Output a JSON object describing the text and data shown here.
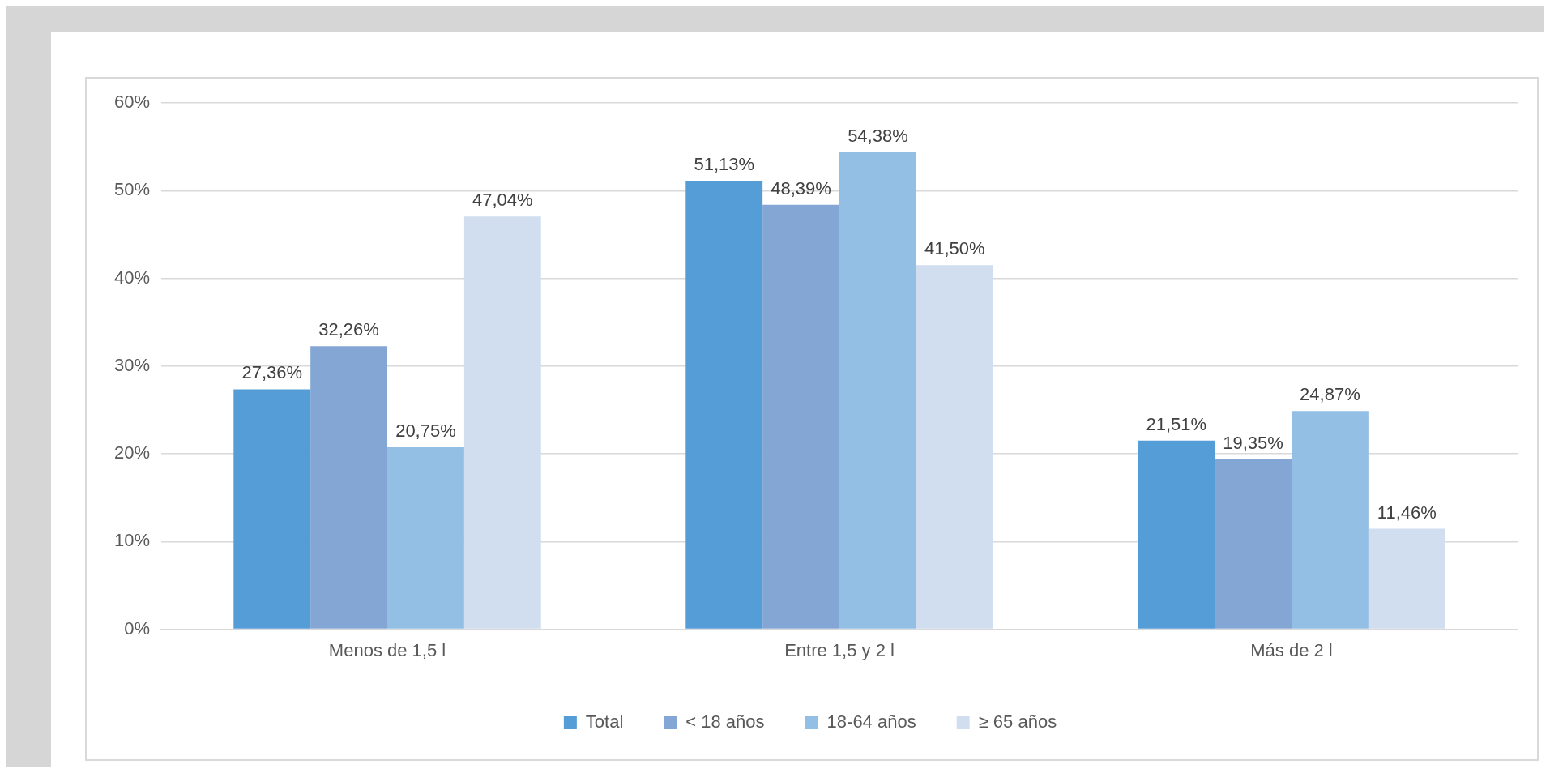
{
  "chart_data": {
    "type": "bar",
    "categories": [
      "Menos de 1,5 l",
      "Entre 1,5 y 2 l",
      "Más de 2 l"
    ],
    "series": [
      {
        "name": "Total",
        "color": "#559dd6",
        "values": [
          27.36,
          51.13,
          21.51
        ],
        "value_labels": [
          "27,36%",
          "51,13%",
          "21,51%"
        ]
      },
      {
        "name": "< 18 años",
        "color": "#84a6d4",
        "values": [
          32.26,
          48.39,
          19.35
        ],
        "value_labels": [
          "32,26%",
          "48,39%",
          "19,35%"
        ]
      },
      {
        "name": "18-64 años",
        "color": "#93bfe4",
        "values": [
          20.75,
          54.38,
          24.87
        ],
        "value_labels": [
          "20,75%",
          "54,38%",
          "24,87%"
        ]
      },
      {
        "name": "≥ 65 años",
        "color": "#d1deef",
        "values": [
          47.04,
          41.5,
          11.46
        ],
        "value_labels": [
          "47,04%",
          "41,50%",
          "11,46%"
        ]
      }
    ],
    "ylim": [
      0,
      60
    ],
    "yticks": [
      {
        "value": 0,
        "label": "0%"
      },
      {
        "value": 10,
        "label": "10%"
      },
      {
        "value": 20,
        "label": "20%"
      },
      {
        "value": 30,
        "label": "30%"
      },
      {
        "value": 40,
        "label": "40%"
      },
      {
        "value": 50,
        "label": "50%"
      },
      {
        "value": 60,
        "label": "60%"
      }
    ],
    "grid": "y",
    "legend": "bottom"
  }
}
